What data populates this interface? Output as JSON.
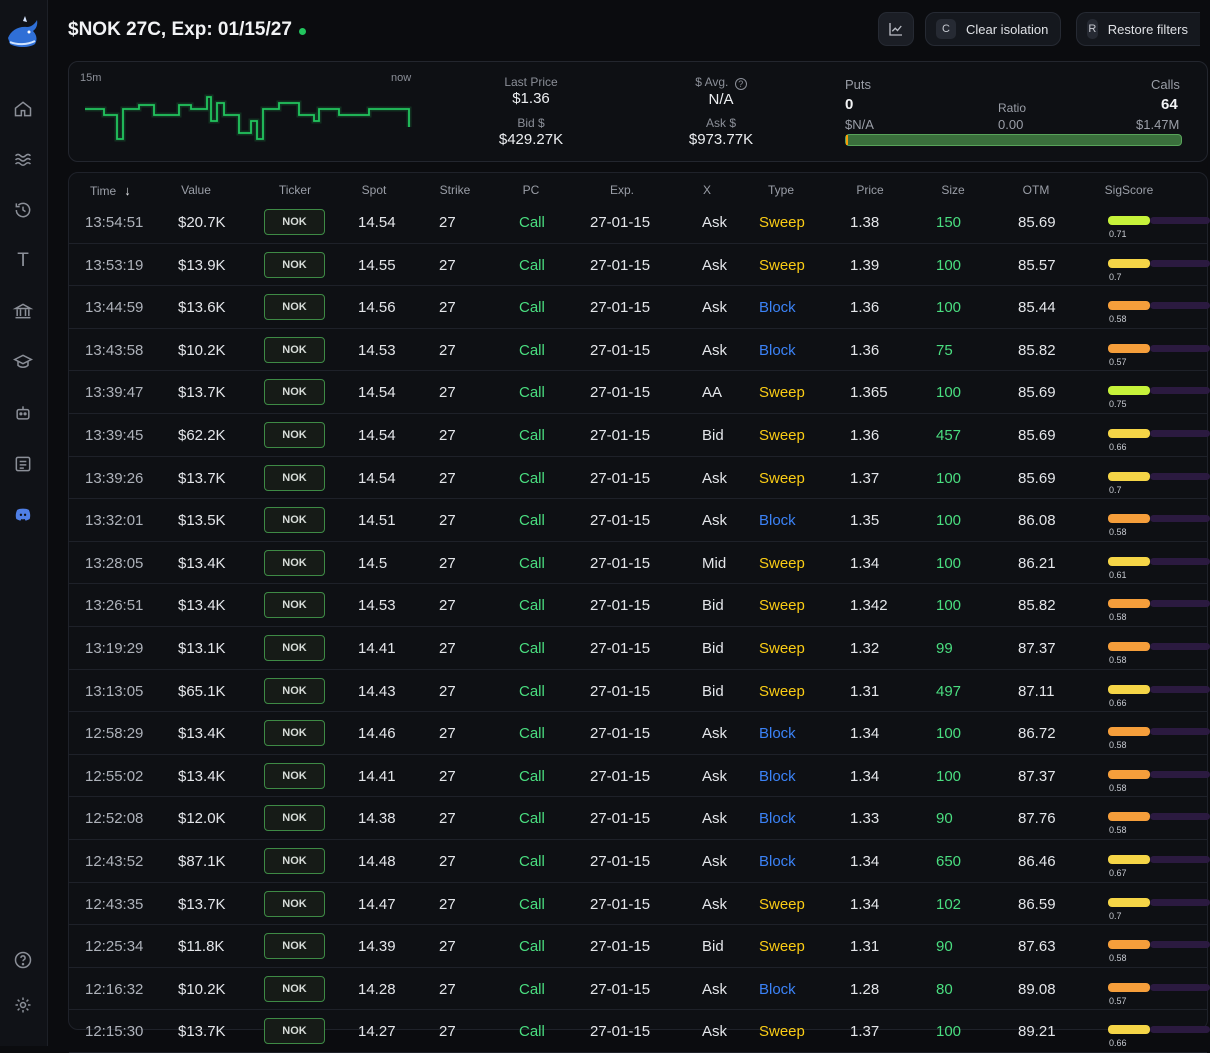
{
  "header": {
    "title": "$NOK 27C, Exp: 01/15/27",
    "clear_isolation": {
      "key": "C",
      "label": "Clear isolation"
    },
    "restore_filters": {
      "key": "R",
      "label": "Restore filters"
    }
  },
  "summary": {
    "spark_start": "15m",
    "spark_end": "now",
    "last_price_label": "Last Price",
    "last_price": "$1.36",
    "bid_label": "Bid $",
    "bid": "$429.27K",
    "avg_label": "$ Avg.",
    "avg": "N/A",
    "ask_label": "Ask $",
    "ask": "$973.77K",
    "puts_label": "Puts",
    "puts": "0",
    "puts_value": "$N/A",
    "ratio_label": "Ratio",
    "ratio": "0.00",
    "calls_label": "Calls",
    "calls": "64",
    "calls_value": "$1.47M",
    "put_share": 0.003
  },
  "table": {
    "columns": [
      "Time",
      "Value",
      "Ticker",
      "Spot",
      "Strike",
      "PC",
      "Exp.",
      "X",
      "Type",
      "Price",
      "Size",
      "OTM",
      "SigScore"
    ],
    "rows": [
      {
        "time": "13:54:51",
        "value": "$20.7K",
        "ticker": "NOK",
        "spot": "14.54",
        "strike": "27",
        "pc": "Call",
        "exp": "27-01-15",
        "x": "Ask",
        "type": "Sweep",
        "price": "1.38",
        "size": "150",
        "otm": "85.69",
        "sig": "0.71"
      },
      {
        "time": "13:53:19",
        "value": "$13.9K",
        "ticker": "NOK",
        "spot": "14.55",
        "strike": "27",
        "pc": "Call",
        "exp": "27-01-15",
        "x": "Ask",
        "type": "Sweep",
        "price": "1.39",
        "size": "100",
        "otm": "85.57",
        "sig": "0.7"
      },
      {
        "time": "13:44:59",
        "value": "$13.6K",
        "ticker": "NOK",
        "spot": "14.56",
        "strike": "27",
        "pc": "Call",
        "exp": "27-01-15",
        "x": "Ask",
        "type": "Block",
        "price": "1.36",
        "size": "100",
        "otm": "85.44",
        "sig": "0.58"
      },
      {
        "time": "13:43:58",
        "value": "$10.2K",
        "ticker": "NOK",
        "spot": "14.53",
        "strike": "27",
        "pc": "Call",
        "exp": "27-01-15",
        "x": "Ask",
        "type": "Block",
        "price": "1.36",
        "size": "75",
        "otm": "85.82",
        "sig": "0.57"
      },
      {
        "time": "13:39:47",
        "value": "$13.7K",
        "ticker": "NOK",
        "spot": "14.54",
        "strike": "27",
        "pc": "Call",
        "exp": "27-01-15",
        "x": "AA",
        "type": "Sweep",
        "price": "1.365",
        "size": "100",
        "otm": "85.69",
        "sig": "0.75"
      },
      {
        "time": "13:39:45",
        "value": "$62.2K",
        "ticker": "NOK",
        "spot": "14.54",
        "strike": "27",
        "pc": "Call",
        "exp": "27-01-15",
        "x": "Bid",
        "type": "Sweep",
        "price": "1.36",
        "size": "457",
        "otm": "85.69",
        "sig": "0.66"
      },
      {
        "time": "13:39:26",
        "value": "$13.7K",
        "ticker": "NOK",
        "spot": "14.54",
        "strike": "27",
        "pc": "Call",
        "exp": "27-01-15",
        "x": "Ask",
        "type": "Sweep",
        "price": "1.37",
        "size": "100",
        "otm": "85.69",
        "sig": "0.7"
      },
      {
        "time": "13:32:01",
        "value": "$13.5K",
        "ticker": "NOK",
        "spot": "14.51",
        "strike": "27",
        "pc": "Call",
        "exp": "27-01-15",
        "x": "Ask",
        "type": "Block",
        "price": "1.35",
        "size": "100",
        "otm": "86.08",
        "sig": "0.58"
      },
      {
        "time": "13:28:05",
        "value": "$13.4K",
        "ticker": "NOK",
        "spot": "14.5",
        "strike": "27",
        "pc": "Call",
        "exp": "27-01-15",
        "x": "Mid",
        "type": "Sweep",
        "price": "1.34",
        "size": "100",
        "otm": "86.21",
        "sig": "0.61"
      },
      {
        "time": "13:26:51",
        "value": "$13.4K",
        "ticker": "NOK",
        "spot": "14.53",
        "strike": "27",
        "pc": "Call",
        "exp": "27-01-15",
        "x": "Bid",
        "type": "Sweep",
        "price": "1.342",
        "size": "100",
        "otm": "85.82",
        "sig": "0.58"
      },
      {
        "time": "13:19:29",
        "value": "$13.1K",
        "ticker": "NOK",
        "spot": "14.41",
        "strike": "27",
        "pc": "Call",
        "exp": "27-01-15",
        "x": "Bid",
        "type": "Sweep",
        "price": "1.32",
        "size": "99",
        "otm": "87.37",
        "sig": "0.58"
      },
      {
        "time": "13:13:05",
        "value": "$65.1K",
        "ticker": "NOK",
        "spot": "14.43",
        "strike": "27",
        "pc": "Call",
        "exp": "27-01-15",
        "x": "Bid",
        "type": "Sweep",
        "price": "1.31",
        "size": "497",
        "otm": "87.11",
        "sig": "0.66"
      },
      {
        "time": "12:58:29",
        "value": "$13.4K",
        "ticker": "NOK",
        "spot": "14.46",
        "strike": "27",
        "pc": "Call",
        "exp": "27-01-15",
        "x": "Ask",
        "type": "Block",
        "price": "1.34",
        "size": "100",
        "otm": "86.72",
        "sig": "0.58"
      },
      {
        "time": "12:55:02",
        "value": "$13.4K",
        "ticker": "NOK",
        "spot": "14.41",
        "strike": "27",
        "pc": "Call",
        "exp": "27-01-15",
        "x": "Ask",
        "type": "Block",
        "price": "1.34",
        "size": "100",
        "otm": "87.37",
        "sig": "0.58"
      },
      {
        "time": "12:52:08",
        "value": "$12.0K",
        "ticker": "NOK",
        "spot": "14.38",
        "strike": "27",
        "pc": "Call",
        "exp": "27-01-15",
        "x": "Ask",
        "type": "Block",
        "price": "1.33",
        "size": "90",
        "otm": "87.76",
        "sig": "0.58"
      },
      {
        "time": "12:43:52",
        "value": "$87.1K",
        "ticker": "NOK",
        "spot": "14.48",
        "strike": "27",
        "pc": "Call",
        "exp": "27-01-15",
        "x": "Ask",
        "type": "Block",
        "price": "1.34",
        "size": "650",
        "otm": "86.46",
        "sig": "0.67"
      },
      {
        "time": "12:43:35",
        "value": "$13.7K",
        "ticker": "NOK",
        "spot": "14.47",
        "strike": "27",
        "pc": "Call",
        "exp": "27-01-15",
        "x": "Ask",
        "type": "Sweep",
        "price": "1.34",
        "size": "102",
        "otm": "86.59",
        "sig": "0.7"
      },
      {
        "time": "12:25:34",
        "value": "$11.8K",
        "ticker": "NOK",
        "spot": "14.39",
        "strike": "27",
        "pc": "Call",
        "exp": "27-01-15",
        "x": "Bid",
        "type": "Sweep",
        "price": "1.31",
        "size": "90",
        "otm": "87.63",
        "sig": "0.58"
      },
      {
        "time": "12:16:32",
        "value": "$10.2K",
        "ticker": "NOK",
        "spot": "14.28",
        "strike": "27",
        "pc": "Call",
        "exp": "27-01-15",
        "x": "Ask",
        "type": "Block",
        "price": "1.28",
        "size": "80",
        "otm": "89.08",
        "sig": "0.57"
      },
      {
        "time": "12:15:30",
        "value": "$13.7K",
        "ticker": "NOK",
        "spot": "14.27",
        "strike": "27",
        "pc": "Call",
        "exp": "27-01-15",
        "x": "Ask",
        "type": "Sweep",
        "price": "1.37",
        "size": "100",
        "otm": "89.21",
        "sig": "0.66"
      }
    ]
  },
  "colors": {
    "call": "#4ade80",
    "sweep": "#facc15",
    "block": "#3b82f6",
    "sig_high": "#c6f23a",
    "sig_mid": "#f5d547",
    "sig_low": "#f59e3b"
  },
  "sidebar": {
    "icons": [
      "logo-whale-icon",
      "home-icon",
      "waves-icon",
      "history-icon",
      "text-t-icon",
      "bank-icon",
      "graduation-cap-icon",
      "robot-icon",
      "news-icon",
      "discord-icon",
      "help-icon",
      "settings-icon"
    ]
  }
}
